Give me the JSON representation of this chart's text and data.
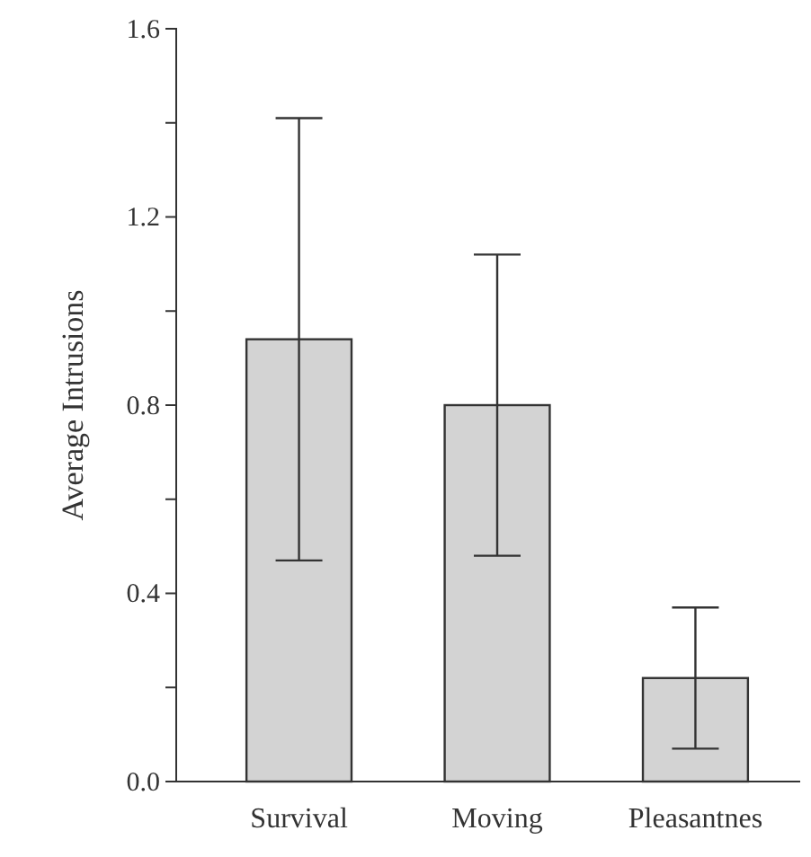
{
  "chart_data": {
    "type": "bar",
    "ylabel": "Average Intrusions",
    "categories": [
      "Survival",
      "Moving",
      "Pleasantnes"
    ],
    "values": [
      0.94,
      0.8,
      0.22
    ],
    "errors": [
      [
        0.47,
        1.41
      ],
      [
        0.48,
        1.12
      ],
      [
        0.07,
        0.37
      ]
    ],
    "color": "#d3d3d3",
    "ylim": [
      0,
      1.6
    ],
    "yticks": [
      {
        "value": 0,
        "label": "0.0"
      },
      {
        "value": 0.2,
        "label": null
      },
      {
        "value": 0.4,
        "label": "0.4"
      },
      {
        "value": 0.6,
        "label": null
      },
      {
        "value": 0.8,
        "label": "0.8"
      },
      {
        "value": 1.0,
        "label": null
      },
      {
        "value": 1.2,
        "label": "1.2"
      },
      {
        "value": 1.4,
        "label": null
      },
      {
        "value": 1.6,
        "label": "1.6"
      }
    ],
    "grid": false
  }
}
